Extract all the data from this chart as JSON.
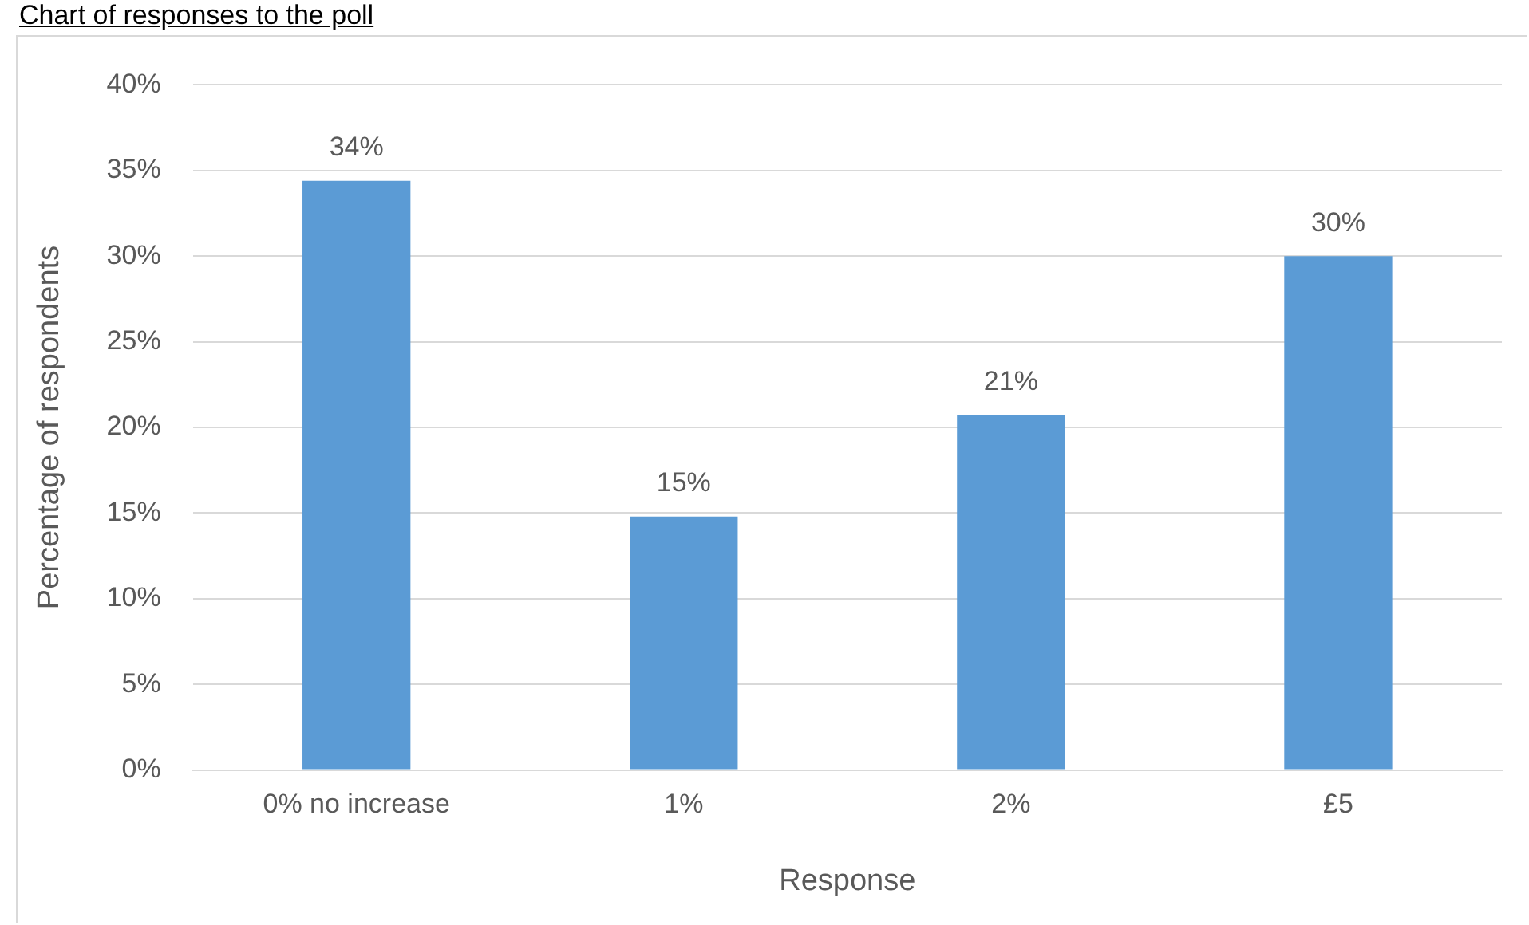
{
  "chart_data": {
    "type": "bar",
    "title": "Chart of responses to the poll",
    "xlabel": "Response",
    "ylabel": "Percentage of respondents",
    "categories": [
      "0% no increase",
      "1%",
      "2%",
      "£5"
    ],
    "values": [
      34.4,
      14.8,
      20.7,
      30
    ],
    "value_labels": [
      "34%",
      "15%",
      "21%",
      "30%"
    ],
    "color": "#5b9bd5",
    "ylim": [
      0,
      40
    ],
    "yticks": [
      {
        "value": 0,
        "label": "0%"
      },
      {
        "value": 5,
        "label": "5%"
      },
      {
        "value": 10,
        "label": "10%"
      },
      {
        "value": 15,
        "label": "15%"
      },
      {
        "value": 20,
        "label": "20%"
      },
      {
        "value": 25,
        "label": "25%"
      },
      {
        "value": 30,
        "label": "30%"
      },
      {
        "value": 35,
        "label": "35%"
      },
      {
        "value": 40,
        "label": "40%"
      }
    ],
    "grid": "y",
    "legend": false
  }
}
